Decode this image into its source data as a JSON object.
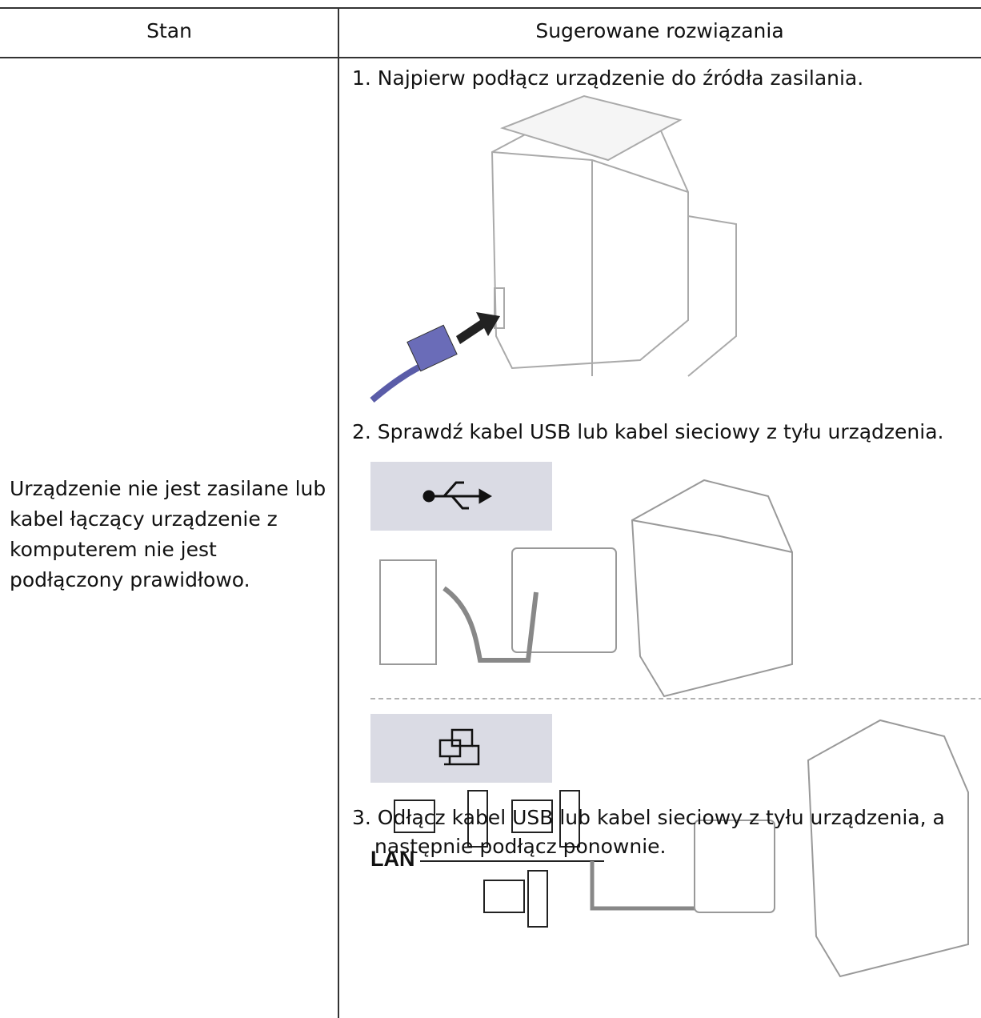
{
  "header": {
    "columns": [
      "Stan",
      "Sugerowane rozwiązania"
    ]
  },
  "rows": [
    {
      "condition": "Urządzenie nie jest zasilane lub kabel łączący urządzenie z komputerem nie jest podłączony prawidłowo.",
      "solutions": [
        "1. Najpierw podłącz urządzenie do źródła zasilania.",
        "2. Sprawdź kabel USB lub kabel sieciowy z tyłu urządzenia.",
        "3. Odłącz kabel USB lub kabel sieciowy z tyłu urządzenia, a następnie podłącz ponownie."
      ]
    }
  ],
  "figure_labels": [
    "LAN"
  ]
}
